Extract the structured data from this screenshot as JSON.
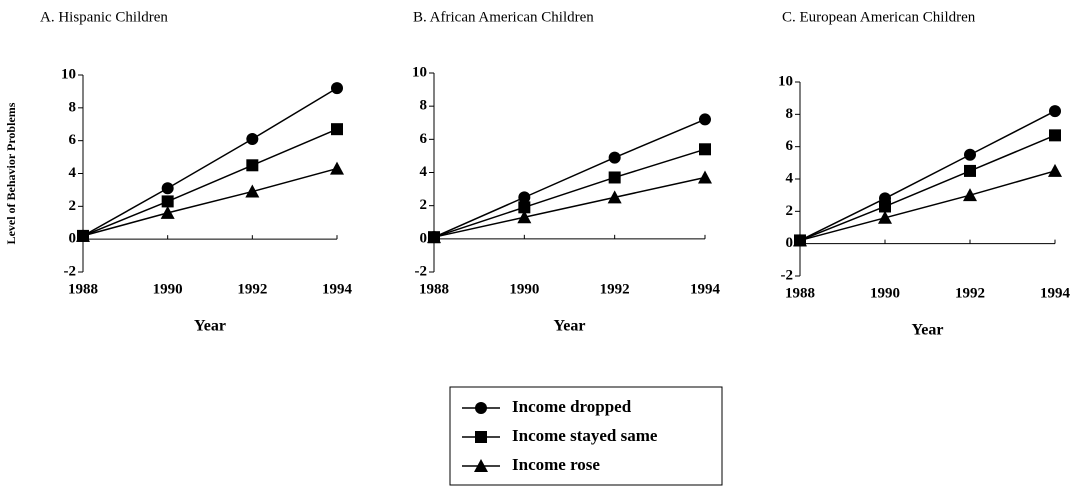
{
  "legend": [
    "Income dropped",
    "Income stayed same",
    "Income rose"
  ],
  "chart_data": [
    {
      "type": "line",
      "title": "A.  Hispanic Children",
      "y_label": "Level of Behavior Problems",
      "x_label": "Year",
      "x": [
        1988,
        1990,
        1992,
        1994
      ],
      "xlim": [
        1988,
        1994
      ],
      "xticks": [
        1988,
        1990,
        1992,
        1994
      ],
      "ylim": [
        -2,
        10
      ],
      "yticks": [
        -2,
        0,
        2,
        4,
        6,
        8,
        10
      ],
      "series": [
        {
          "marker": "circle",
          "color": "#000000",
          "values": [
            0.2,
            3.1,
            6.1,
            9.2
          ]
        },
        {
          "marker": "square",
          "color": "#000000",
          "values": [
            0.2,
            2.3,
            4.5,
            6.7
          ]
        },
        {
          "marker": "triangle",
          "color": "#000000",
          "values": [
            0.2,
            1.6,
            2.9,
            4.3
          ]
        }
      ]
    },
    {
      "type": "line",
      "title": "B.  African American  Children",
      "x_label": "Year",
      "x": [
        1988,
        1990,
        1992,
        1994
      ],
      "xlim": [
        1988,
        1994
      ],
      "xticks": [
        1988,
        1990,
        1992,
        1994
      ],
      "ylim": [
        -2,
        10
      ],
      "yticks": [
        -2,
        0,
        2,
        4,
        6,
        8,
        10
      ],
      "series": [
        {
          "marker": "circle",
          "color": "#000000",
          "values": [
            0.1,
            2.5,
            4.9,
            7.2
          ]
        },
        {
          "marker": "square",
          "color": "#000000",
          "values": [
            0.1,
            1.9,
            3.7,
            5.4
          ]
        },
        {
          "marker": "triangle",
          "color": "#000000",
          "values": [
            0.1,
            1.3,
            2.5,
            3.7
          ]
        }
      ]
    },
    {
      "type": "line",
      "title": "C.  European American  Children",
      "x_label": "Year",
      "x": [
        1988,
        1990,
        1992,
        1994
      ],
      "xlim": [
        1988,
        1994
      ],
      "xticks": [
        1988,
        1990,
        1992,
        1994
      ],
      "ylim": [
        -2,
        10
      ],
      "yticks": [
        -2,
        0,
        2,
        4,
        6,
        8,
        10
      ],
      "series": [
        {
          "marker": "circle",
          "color": "#000000",
          "values": [
            0.2,
            2.8,
            5.5,
            8.2
          ]
        },
        {
          "marker": "square",
          "color": "#000000",
          "values": [
            0.2,
            2.3,
            4.5,
            6.7
          ]
        },
        {
          "marker": "triangle",
          "color": "#000000",
          "values": [
            0.2,
            1.6,
            3.0,
            4.5
          ]
        }
      ]
    }
  ]
}
